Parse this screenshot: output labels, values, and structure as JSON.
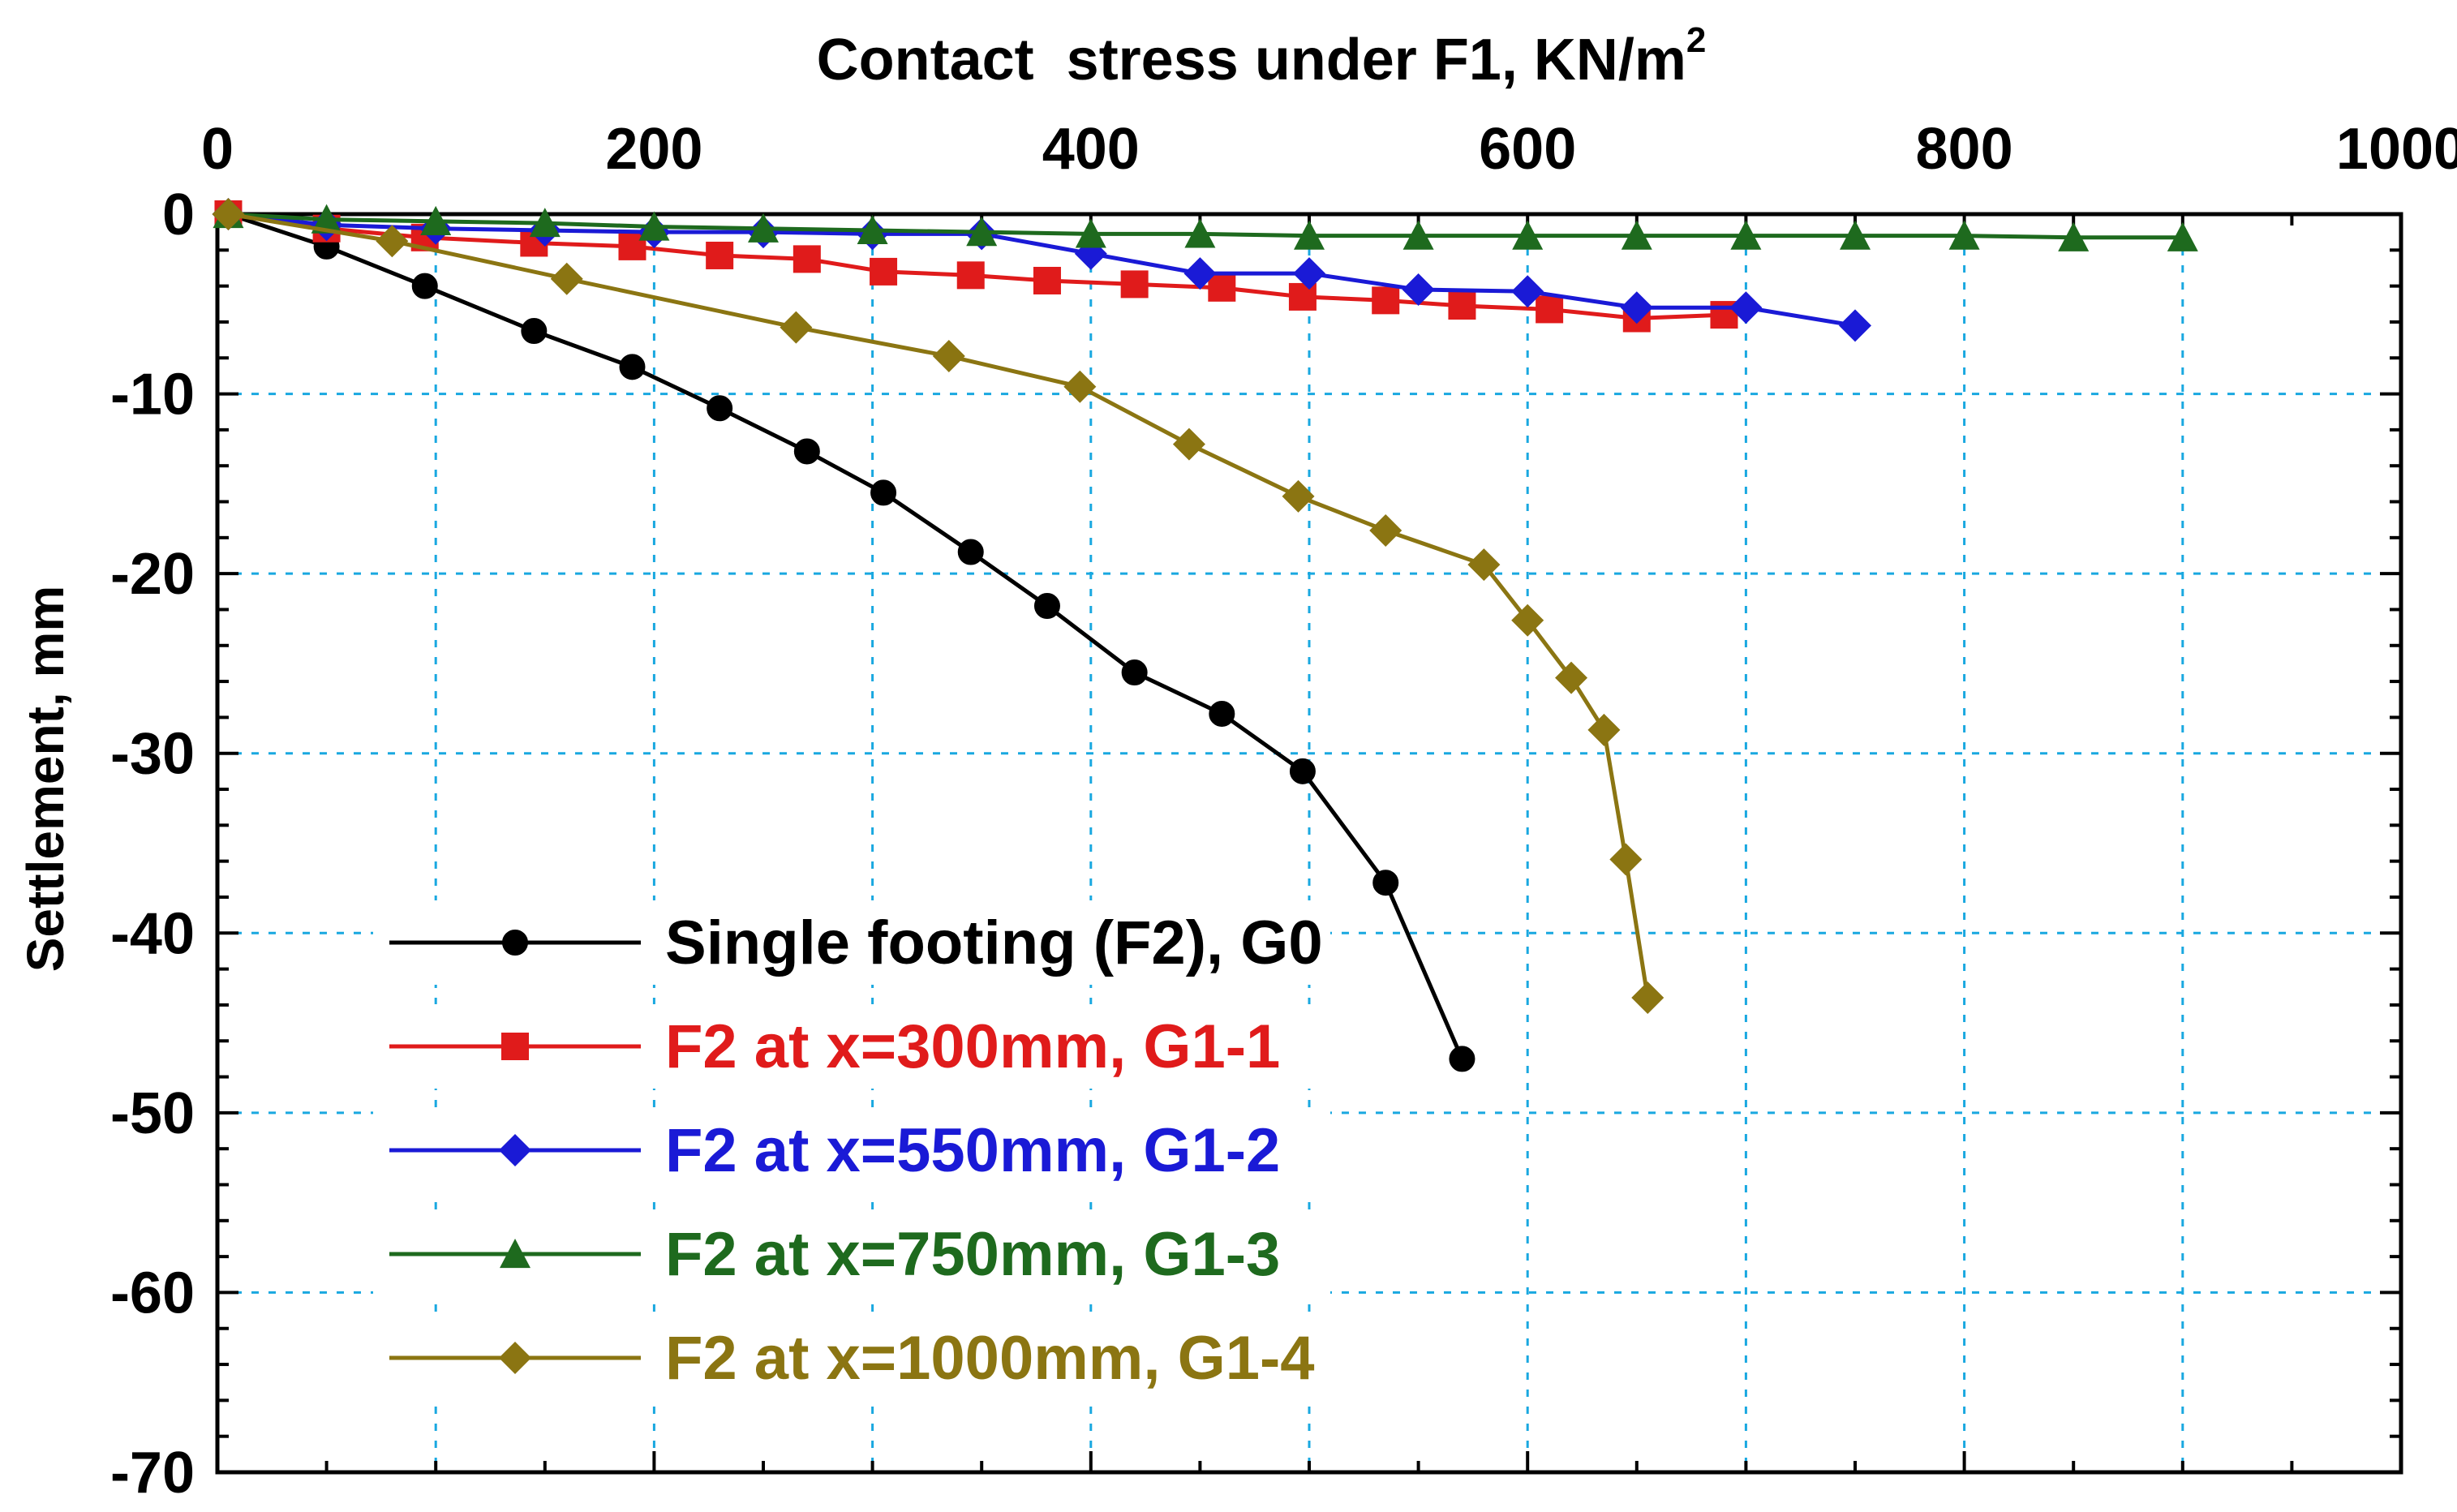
{
  "chart_data": {
    "type": "line",
    "title": "",
    "xlabel_main": "Contact  stress under F1, KN/m",
    "xlabel_sup": "2",
    "ylabel": "Settlement, mm",
    "x_axis_position": "top",
    "xlim": [
      0,
      1000
    ],
    "ylim": [
      -70,
      0
    ],
    "x_ticks": [
      0,
      200,
      400,
      600,
      800,
      1000
    ],
    "x_tick_labels": [
      "0",
      "200",
      "400",
      "600",
      "800",
      "1000"
    ],
    "y_ticks": [
      0,
      -10,
      -20,
      -30,
      -40,
      -50,
      -60,
      -70
    ],
    "y_tick_labels": [
      "0",
      "-10",
      "-20",
      "-30",
      "-40",
      "-50",
      "-60",
      "-70"
    ],
    "grid": true,
    "legend_position": "bottom-left",
    "series": [
      {
        "name": "Single footing (F2), G0",
        "color": "#000000",
        "label_color": "#000000",
        "marker": "circle",
        "x": [
          5,
          50,
          95,
          145,
          190,
          230,
          270,
          305,
          345,
          380,
          420,
          460,
          497,
          535,
          570
        ],
        "y": [
          0,
          -1.8,
          -4,
          -6.5,
          -8.5,
          -10.8,
          -13.2,
          -15.5,
          -18.8,
          -21.8,
          -25.5,
          -27.8,
          -31,
          -37.2,
          -47
        ]
      },
      {
        "name": "F2 at x=300mm, G1-1",
        "color": "#e01b1b",
        "label_color": "#e01b1b",
        "marker": "square",
        "x": [
          5,
          50,
          95,
          145,
          190,
          230,
          270,
          305,
          345,
          380,
          420,
          460,
          497,
          535,
          570,
          610,
          650,
          690
        ],
        "y": [
          0,
          -0.8,
          -1.3,
          -1.6,
          -1.8,
          -2.3,
          -2.5,
          -3.2,
          -3.4,
          -3.7,
          -3.9,
          -4.1,
          -4.6,
          -4.8,
          -5.1,
          -5.3,
          -5.8,
          -5.6
        ]
      },
      {
        "name": "F2 at x=550mm, G1-2",
        "color": "#1a1ad6",
        "label_color": "#1a1ad6",
        "marker": "diamond",
        "x": [
          5,
          50,
          100,
          150,
          200,
          250,
          300,
          350,
          400,
          450,
          500,
          550,
          600,
          650,
          700,
          750
        ],
        "y": [
          0,
          -0.6,
          -0.8,
          -0.9,
          -1.0,
          -1.0,
          -1.1,
          -1.1,
          -2.2,
          -3.3,
          -3.3,
          -4.2,
          -4.3,
          -5.2,
          -5.2,
          -6.2
        ]
      },
      {
        "name": "F2 at x=750mm, G1-3",
        "color": "#1e6a1e",
        "label_color": "#1e6a1e",
        "marker": "triangle",
        "x": [
          5,
          50,
          100,
          150,
          200,
          250,
          300,
          350,
          400,
          450,
          500,
          550,
          600,
          650,
          700,
          750,
          800,
          850,
          900
        ],
        "y": [
          0,
          -0.3,
          -0.4,
          -0.5,
          -0.7,
          -0.8,
          -0.9,
          -1.0,
          -1.1,
          -1.1,
          -1.2,
          -1.2,
          -1.2,
          -1.2,
          -1.2,
          -1.2,
          -1.2,
          -1.3,
          -1.3
        ]
      },
      {
        "name": "F2 at x=1000mm, G1-4",
        "color": "#8b7512",
        "label_color": "#8b7512",
        "marker": "diamond",
        "x": [
          5,
          80,
          160,
          265,
          335,
          395,
          445,
          495,
          535,
          580,
          600,
          620,
          635,
          645,
          655
        ],
        "y": [
          0,
          -1.5,
          -3.6,
          -6.3,
          -7.9,
          -9.6,
          -12.8,
          -15.7,
          -17.6,
          -19.5,
          -22.6,
          -25.8,
          -28.7,
          -35.9,
          -43.6
        ]
      }
    ]
  }
}
